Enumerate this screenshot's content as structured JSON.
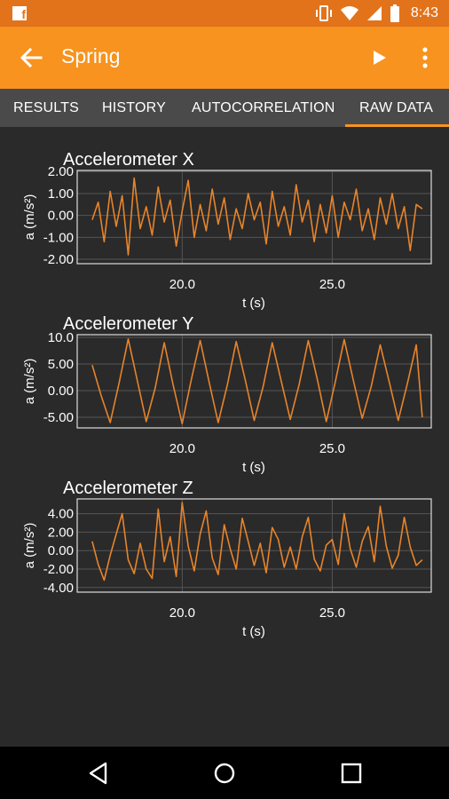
{
  "status_bar": {
    "time": "8:43",
    "notification_icon": "facebook-icon"
  },
  "app_bar": {
    "title": "Spring",
    "back_icon": "arrow-back-icon",
    "play_icon": "play-icon",
    "menu_icon": "more-vert-icon"
  },
  "tabs": [
    {
      "label": "RESULTS",
      "active": false
    },
    {
      "label": "HISTORY",
      "active": false
    },
    {
      "label": "AUTOCORRELATION",
      "active": false
    },
    {
      "label": "RAW DATA",
      "active": true
    }
  ],
  "colors": {
    "accent": "#f7931e",
    "status_bar": "#e2731b",
    "tab_bar": "#4a4a4a",
    "background": "#2a2a2a",
    "line": "#e8842a"
  },
  "chart_data": [
    {
      "type": "line",
      "title": "Accelerometer X",
      "xlabel": "t (s)",
      "ylabel": "a (m/s²)",
      "xlim": [
        16.5,
        28.3
      ],
      "ylim": [
        -2.2,
        2.05
      ],
      "xticks": [
        "20.0",
        "25.0"
      ],
      "yticks": [
        "2.00",
        "1.00",
        "0.00",
        "-1.00",
        "-2.00"
      ],
      "series": [
        {
          "x": [
            17.0,
            17.2,
            17.4,
            17.6,
            17.8,
            18.0,
            18.2,
            18.4,
            18.6,
            18.8,
            19.0,
            19.2,
            19.4,
            19.6,
            19.8,
            20.0,
            20.2,
            20.4,
            20.6,
            20.8,
            21.0,
            21.2,
            21.4,
            21.6,
            21.8,
            22.0,
            22.2,
            22.4,
            22.6,
            22.8,
            23.0,
            23.2,
            23.4,
            23.6,
            23.8,
            24.0,
            24.2,
            24.4,
            24.6,
            24.8,
            25.0,
            25.2,
            25.4,
            25.6,
            25.8,
            26.0,
            26.2,
            26.4,
            26.6,
            26.8,
            27.0,
            27.2,
            27.4,
            27.6,
            27.8,
            28.0
          ],
          "y": [
            -0.2,
            0.6,
            -1.2,
            1.1,
            -0.5,
            0.9,
            -1.8,
            1.7,
            -0.6,
            0.4,
            -0.9,
            1.3,
            -0.3,
            0.7,
            -1.4,
            0.2,
            1.6,
            -1.0,
            0.5,
            -0.7,
            1.2,
            -0.4,
            0.8,
            -1.1,
            0.3,
            -0.6,
            1.0,
            -0.2,
            0.6,
            -1.3,
            1.1,
            -0.5,
            0.4,
            -0.9,
            1.4,
            -0.3,
            0.7,
            -1.2,
            0.5,
            -0.8,
            0.9,
            -1.0,
            0.6,
            -0.2,
            1.2,
            -0.7,
            0.3,
            -1.1,
            0.8,
            -0.4,
            1.0,
            -0.6,
            0.4,
            -1.6,
            0.5,
            0.3
          ]
        }
      ]
    },
    {
      "type": "line",
      "title": "Accelerometer Y",
      "xlabel": "t (s)",
      "ylabel": "a (m/s²)",
      "xlim": [
        16.5,
        28.3
      ],
      "ylim": [
        -7.0,
        10.5
      ],
      "xticks": [
        "20.0",
        "25.0"
      ],
      "yticks": [
        "10.0",
        "5.00",
        "0.00",
        "-5.00"
      ],
      "series": [
        {
          "x": [
            17.0,
            17.3,
            17.6,
            17.9,
            18.2,
            18.5,
            18.8,
            19.1,
            19.4,
            19.7,
            20.0,
            20.3,
            20.6,
            20.9,
            21.2,
            21.5,
            21.8,
            22.1,
            22.4,
            22.7,
            23.0,
            23.3,
            23.6,
            23.9,
            24.2,
            24.5,
            24.8,
            25.1,
            25.4,
            25.7,
            26.0,
            26.3,
            26.6,
            26.9,
            27.2,
            27.5,
            27.8,
            28.0
          ],
          "y": [
            4.8,
            -1.0,
            -6.0,
            1.5,
            9.7,
            2.0,
            -5.8,
            0.5,
            9.0,
            1.0,
            -6.2,
            2.0,
            9.4,
            1.5,
            -6.0,
            1.0,
            9.2,
            2.0,
            -5.6,
            0.8,
            9.0,
            1.8,
            -5.4,
            1.2,
            9.4,
            2.2,
            -5.8,
            1.6,
            9.6,
            2.0,
            -5.2,
            0.8,
            8.6,
            1.6,
            -5.6,
            1.2,
            8.6,
            -5.0
          ]
        }
      ]
    },
    {
      "type": "line",
      "title": "Accelerometer Z",
      "xlabel": "t (s)",
      "ylabel": "a (m/s²)",
      "xlim": [
        16.5,
        28.3
      ],
      "ylim": [
        -4.5,
        5.6
      ],
      "xticks": [
        "20.0",
        "25.0"
      ],
      "yticks": [
        "4.00",
        "2.00",
        "0.00",
        "-2.00",
        "-4.00"
      ],
      "series": [
        {
          "x": [
            17.0,
            17.2,
            17.4,
            17.6,
            17.8,
            18.0,
            18.2,
            18.4,
            18.6,
            18.8,
            19.0,
            19.2,
            19.4,
            19.6,
            19.8,
            20.0,
            20.2,
            20.4,
            20.6,
            20.8,
            21.0,
            21.2,
            21.4,
            21.6,
            21.8,
            22.0,
            22.2,
            22.4,
            22.6,
            22.8,
            23.0,
            23.2,
            23.4,
            23.6,
            23.8,
            24.0,
            24.2,
            24.4,
            24.6,
            24.8,
            25.0,
            25.2,
            25.4,
            25.6,
            25.8,
            26.0,
            26.2,
            26.4,
            26.6,
            26.8,
            27.0,
            27.2,
            27.4,
            27.6,
            27.8,
            28.0
          ],
          "y": [
            1.0,
            -1.5,
            -3.2,
            -0.5,
            1.8,
            4.0,
            -1.0,
            -2.5,
            0.8,
            -2.0,
            -3.0,
            4.5,
            -1.2,
            1.5,
            -2.8,
            5.2,
            0.5,
            -2.2,
            1.8,
            4.3,
            -0.8,
            -2.6,
            2.8,
            0.2,
            -2.0,
            3.5,
            1.0,
            -1.6,
            0.8,
            -2.4,
            2.5,
            1.2,
            -1.8,
            0.4,
            -2.0,
            1.5,
            3.6,
            -0.9,
            -2.2,
            0.6,
            1.2,
            -1.5,
            4.0,
            0.2,
            -1.8,
            1.0,
            2.6,
            -1.2,
            4.8,
            0.5,
            -1.9,
            -0.5,
            3.6,
            0.4,
            -1.6,
            -1.0
          ]
        }
      ]
    }
  ]
}
